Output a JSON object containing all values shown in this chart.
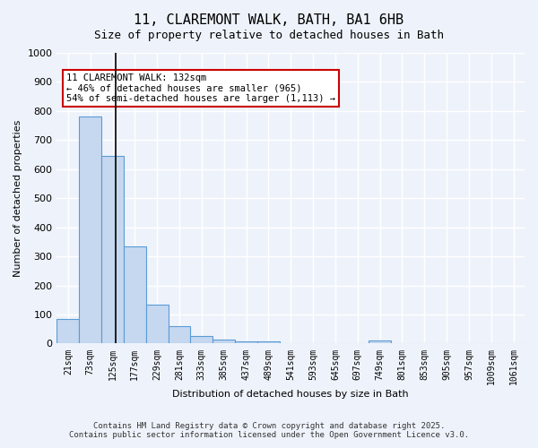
{
  "title_line1": "11, CLAREMONT WALK, BATH, BA1 6HB",
  "title_line2": "Size of property relative to detached houses in Bath",
  "xlabel": "Distribution of detached houses by size in Bath",
  "ylabel": "Number of detached properties",
  "categories": [
    "21sqm",
    "73sqm",
    "125sqm",
    "177sqm",
    "229sqm",
    "281sqm",
    "333sqm",
    "385sqm",
    "437sqm",
    "489sqm",
    "541sqm",
    "593sqm",
    "645sqm",
    "697sqm",
    "749sqm",
    "801sqm",
    "853sqm",
    "905sqm",
    "957sqm",
    "1009sqm",
    "1061sqm"
  ],
  "values": [
    85,
    780,
    645,
    335,
    135,
    60,
    25,
    15,
    8,
    8,
    0,
    0,
    0,
    0,
    10,
    0,
    0,
    0,
    0,
    0,
    0
  ],
  "bar_color": "#c5d8f0",
  "bar_edge_color": "#5b9bd5",
  "vline_x": 2.5,
  "vline_color": "#000000",
  "annotation_text": "11 CLAREMONT WALK: 132sqm\n← 46% of detached houses are smaller (965)\n54% of semi-detached houses are larger (1,113) →",
  "annotation_box_color": "#ffffff",
  "annotation_box_edge": "#cc0000",
  "ylim": [
    0,
    1000
  ],
  "yticks": [
    0,
    100,
    200,
    300,
    400,
    500,
    600,
    700,
    800,
    900,
    1000
  ],
  "background_color": "#eef3fb",
  "grid_color": "#ffffff",
  "footer_line1": "Contains HM Land Registry data © Crown copyright and database right 2025.",
  "footer_line2": "Contains public sector information licensed under the Open Government Licence v3.0."
}
